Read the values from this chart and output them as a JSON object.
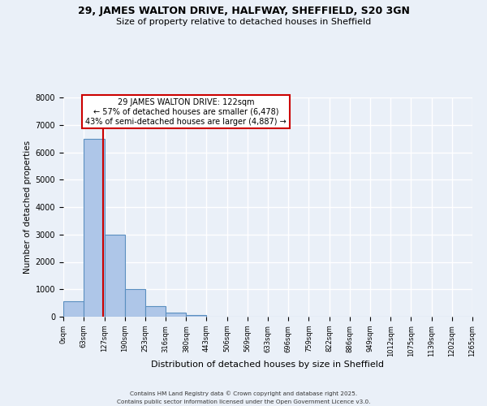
{
  "title": "29, JAMES WALTON DRIVE, HALFWAY, SHEFFIELD, S20 3GN",
  "subtitle": "Size of property relative to detached houses in Sheffield",
  "bar_values": [
    550,
    6478,
    3000,
    1000,
    380,
    160,
    60,
    0,
    0,
    0,
    0,
    0,
    0,
    0,
    0,
    0,
    0,
    0,
    0,
    0
  ],
  "bin_edges": [
    0,
    63,
    127,
    190,
    253,
    316,
    380,
    443,
    506,
    569,
    633,
    696,
    759,
    822,
    886,
    949,
    1012,
    1075,
    1139,
    1202,
    1265
  ],
  "bin_labels": [
    "0sqm",
    "63sqm",
    "127sqm",
    "190sqm",
    "253sqm",
    "316sqm",
    "380sqm",
    "443sqm",
    "506sqm",
    "569sqm",
    "633sqm",
    "696sqm",
    "759sqm",
    "822sqm",
    "886sqm",
    "949sqm",
    "1012sqm",
    "1075sqm",
    "1139sqm",
    "1202sqm",
    "1265sqm"
  ],
  "bar_color": "#aec6e8",
  "bar_edge_color": "#5a8fc0",
  "bar_edge_width": 0.8,
  "property_line_x": 122,
  "property_line_color": "#cc0000",
  "ylabel": "Number of detached properties",
  "xlabel": "Distribution of detached houses by size in Sheffield",
  "ylim": [
    0,
    8000
  ],
  "yticks": [
    0,
    1000,
    2000,
    3000,
    4000,
    5000,
    6000,
    7000,
    8000
  ],
  "annotation_title": "29 JAMES WALTON DRIVE: 122sqm",
  "annotation_line1": "← 57% of detached houses are smaller (6,478)",
  "annotation_line2": "43% of semi-detached houses are larger (4,887) →",
  "annotation_box_color": "#ffffff",
  "annotation_box_edge_color": "#cc0000",
  "bg_color": "#eaf0f8",
  "grid_color": "#ffffff",
  "footnote1": "Contains HM Land Registry data © Crown copyright and database right 2025.",
  "footnote2": "Contains public sector information licensed under the Open Government Licence v3.0."
}
